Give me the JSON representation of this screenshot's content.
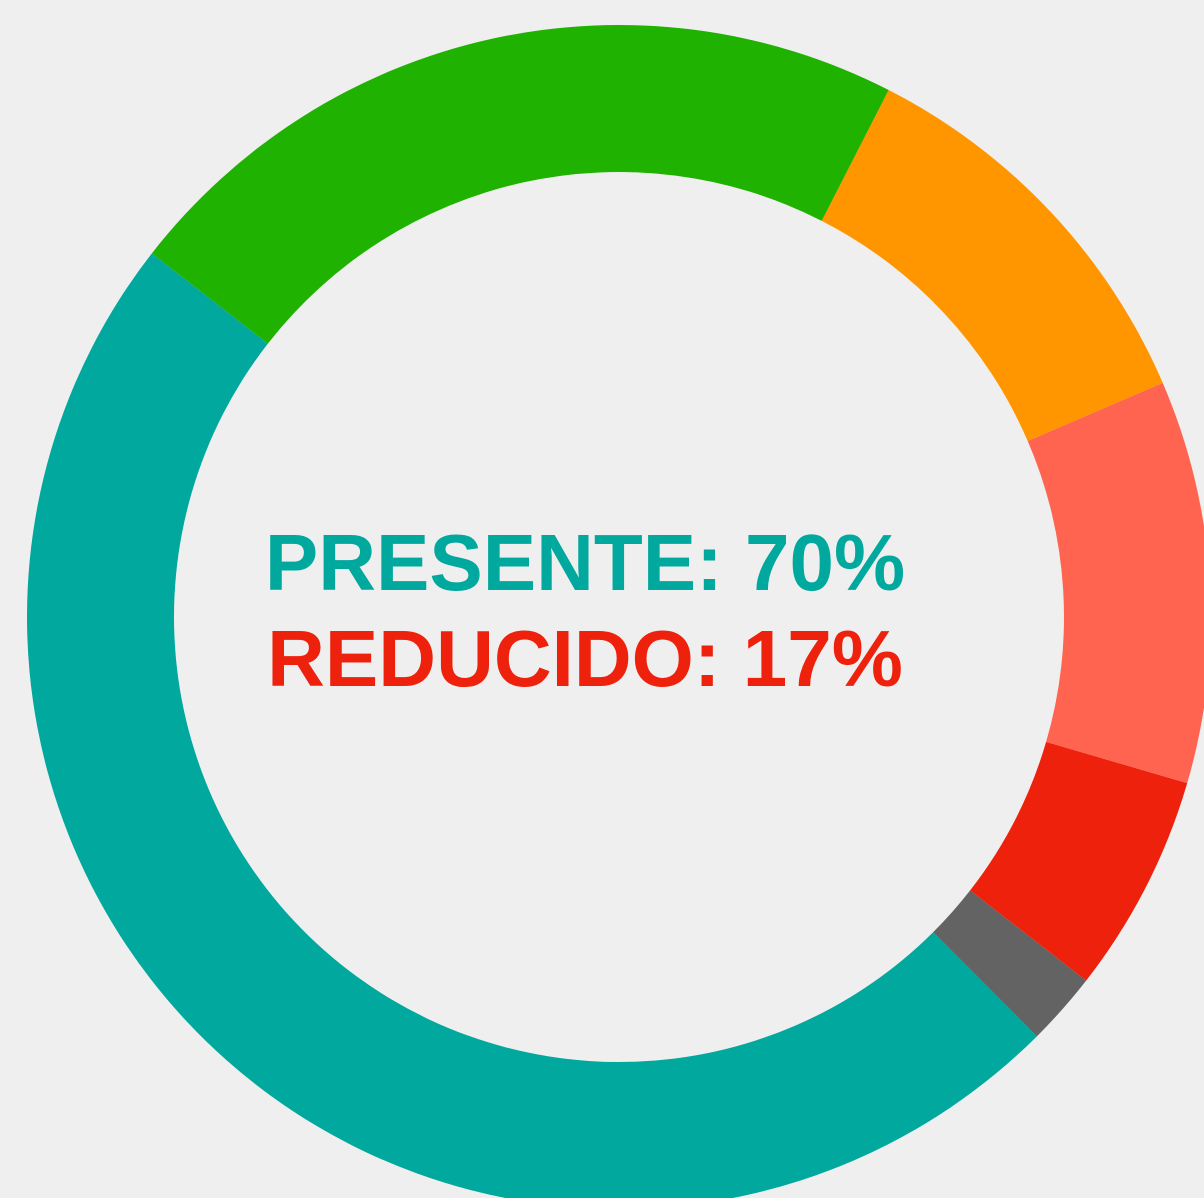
{
  "chart_data": {
    "type": "donut",
    "values": [
      22,
      11,
      11,
      6,
      2,
      48
    ],
    "colors": [
      "#20b200",
      "#ff9600",
      "#ff6450",
      "#ee210c",
      "#636363",
      "#00a89e"
    ],
    "annotations": [
      {
        "text": "PRESENTE: 70%",
        "color": "#00a89e"
      },
      {
        "text": "REDUCIDO: 17%",
        "color": "#ee210c"
      }
    ]
  }
}
